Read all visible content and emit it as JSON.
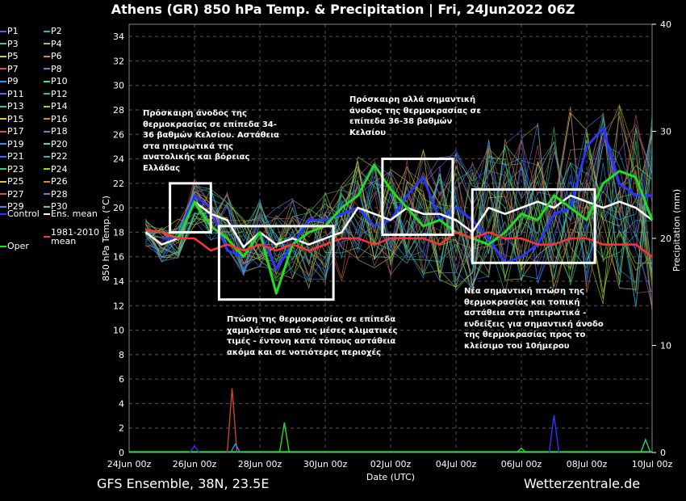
{
  "header": {
    "title": "Athens  (GR)  850 hPa Temp. & Precipitation | Fri, 24Jun2022 06Z"
  },
  "footer": {
    "model": "GFS Ensemble, 38N, 23.5E",
    "source": "Wetterzentrale.de"
  },
  "colors": {
    "background": "#000000",
    "grid": "#555555",
    "control": "#2a36ff",
    "ens_mean": "#ffffff",
    "oper": "#22dd22",
    "clim": "#ff3333"
  },
  "chart_data": {
    "type": "line",
    "ylabel": "850 hPa Temp. (°C)",
    "ylabel_right": "Precipitation (mm)",
    "xlabel": "Date (UTC)",
    "x_ticks": [
      "24Jun 00z",
      "26Jun 00z",
      "28Jun 00z",
      "30Jun 00z",
      "02Jul 00z",
      "04Jul 00z",
      "06Jul 00z",
      "08Jul 00z",
      "10Jul 00z"
    ],
    "x_range_days": [
      0,
      16
    ],
    "ylim": [
      0,
      35
    ],
    "y_ticks": [
      0,
      2,
      4,
      6,
      8,
      10,
      12,
      14,
      16,
      18,
      20,
      22,
      24,
      26,
      28,
      30,
      32,
      34
    ],
    "y2lim": [
      0,
      40
    ],
    "y2_ticks": [
      0,
      10,
      20,
      30,
      40
    ],
    "grid": true,
    "legend": [
      "P1",
      "P2",
      "P3",
      "P4",
      "P5",
      "P6",
      "P7",
      "P8",
      "P9",
      "P10",
      "P11",
      "P12",
      "P13",
      "P14",
      "P15",
      "P16",
      "P17",
      "P18",
      "P19",
      "P20",
      "P21",
      "P22",
      "P23",
      "P24",
      "P25",
      "P26",
      "P27",
      "P28",
      "P29",
      "P30",
      "Control",
      "Ens. mean",
      "Oper",
      "1981-2010 mean"
    ],
    "series": [
      {
        "name": "Control",
        "color": "#2a36ff",
        "x": [
          1,
          1.5,
          2,
          2.5,
          3,
          3.5,
          4,
          4.5,
          5,
          5.5,
          6,
          6.5,
          7,
          7.5,
          8,
          8.5,
          9,
          9.5,
          10,
          10.5,
          11,
          11.5,
          12,
          12.5,
          13,
          13.5,
          14,
          14.5,
          15,
          15.5,
          16
        ],
        "y": [
          17.5,
          17.5,
          21,
          20,
          16.5,
          16,
          18,
          15,
          17,
          19,
          19,
          19.5,
          20,
          18.5,
          19,
          21,
          22.5,
          19,
          20,
          19,
          17.5,
          15.5,
          16,
          17,
          19.5,
          20,
          25,
          26.5,
          22,
          21,
          21
        ]
      },
      {
        "name": "Ens. mean",
        "color": "#ffffff",
        "x": [
          0.5,
          1,
          1.5,
          2,
          2.5,
          3,
          3.5,
          4,
          4.5,
          5,
          5.5,
          6,
          6.5,
          7,
          7.5,
          8,
          8.5,
          9,
          9.5,
          10,
          10.5,
          11,
          11.5,
          12,
          12.5,
          13,
          13.5,
          14,
          14.5,
          15,
          15.5,
          16
        ],
        "y": [
          18,
          17,
          17.5,
          20.5,
          19.5,
          19,
          16.8,
          18,
          17,
          17.5,
          17,
          17.5,
          18,
          20,
          19.5,
          19,
          20,
          19.5,
          19.5,
          19,
          18,
          20,
          19.5,
          20,
          20.5,
          20,
          21,
          20.5,
          20,
          20.5,
          20,
          19
        ]
      },
      {
        "name": "Oper",
        "color": "#22dd22",
        "x": [
          1,
          1.5,
          2,
          2.5,
          3,
          3.5,
          4,
          4.5,
          5,
          5.5,
          6,
          6.5,
          7,
          7.5,
          8,
          8.5,
          9,
          9.5,
          10,
          10.5,
          11,
          11.5,
          12,
          12.5,
          13,
          13.5,
          14,
          14.5,
          15,
          15.5,
          16
        ],
        "y": [
          18,
          17.5,
          20.5,
          18.5,
          17.5,
          16,
          18,
          13,
          17,
          18,
          18.5,
          20,
          21,
          23.5,
          21.5,
          20,
          18.5,
          19,
          18,
          17.5,
          17,
          18,
          19.5,
          19,
          21,
          20,
          19,
          22,
          23,
          22.5,
          19
        ]
      },
      {
        "name": "1981-2010 mean",
        "color": "#ff3333",
        "x": [
          0.5,
          1,
          1.5,
          2,
          2.5,
          3,
          3.5,
          4,
          4.5,
          5,
          5.5,
          6,
          6.5,
          7,
          7.5,
          8,
          8.5,
          9,
          9.5,
          10,
          10.5,
          11,
          11.5,
          12,
          12.5,
          13,
          13.5,
          14,
          14.5,
          15,
          15.5,
          16
        ],
        "y": [
          18.2,
          18,
          17.5,
          17.5,
          16.5,
          17,
          16.5,
          17,
          16.5,
          17,
          16.5,
          17,
          17.5,
          17.5,
          17,
          17.5,
          17.5,
          17.5,
          17,
          18,
          17.5,
          18,
          17.5,
          17.5,
          17,
          17,
          17.5,
          17.5,
          17,
          17,
          17,
          16
        ]
      }
    ],
    "annotations": [
      {
        "text": "Πρόσκαιρη άνοδος της θερμοκρασίας σε επίπεδα 34-36 βαθμών Κελσίου. Αστάθεια στα ηπειρωτικά της ανατολικής και βόρειας Ελλάδας",
        "box_days": [
          1.25,
          2.5
        ],
        "box_temp": [
          18,
          22
        ]
      },
      {
        "text": "Πτώση της θερμοκρασίας σε επίπεδα χαμηλότερα από τις μέσες κλιματικές τιμές - έντονη κατά τόπους αστάθεια ακόμα και σε νοτιότερες περιοχές",
        "box_days": [
          2.75,
          6.25
        ],
        "box_temp": [
          12.5,
          18.5
        ]
      },
      {
        "text": "Πρόσκαιρη αλλά σημαντική άνοδος της θερμοκρασίας σε επίπεδα 36-38 βαθμών Κελσίου",
        "box_days": [
          7.75,
          9.9
        ],
        "box_temp": [
          17.8,
          24
        ]
      },
      {
        "text": "Νέα σημαντική πτώση της θερμοκρασίας και τοπική αστάθεια στα ηπειρωτικά - ενδείξεις για σημαντική άνοδο της θερμοκρασίας προς το κλείσιμο του 10ήμερου",
        "box_days": [
          10.5,
          14.25
        ],
        "box_temp": [
          15.5,
          21.5
        ]
      }
    ]
  }
}
